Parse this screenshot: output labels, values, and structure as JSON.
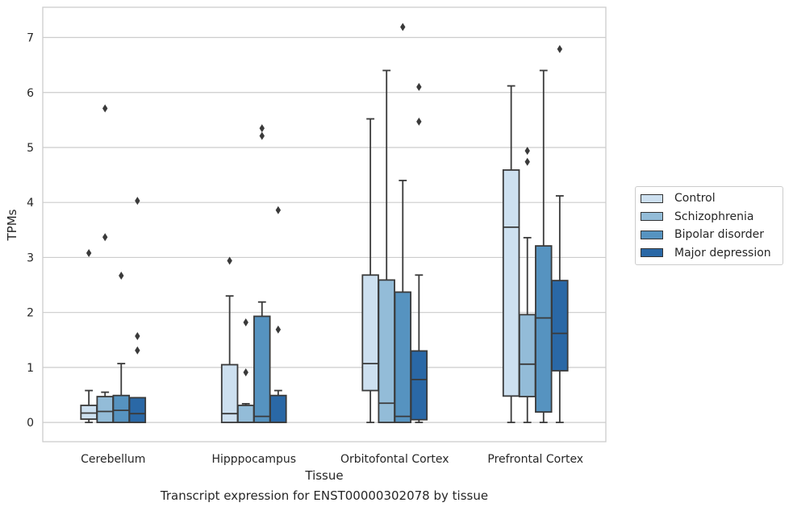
{
  "chart_data": {
    "type": "boxplot",
    "xlabel": "Tissue",
    "ylabel": "TPMs",
    "caption": "Transcript expression for ENST00000302078 by tissue",
    "ylim": [
      -0.35,
      7.55
    ],
    "yticks": [
      0,
      1,
      2,
      3,
      4,
      5,
      6,
      7
    ],
    "grid": "horizontal",
    "legend_position": "right",
    "categories": [
      "Cerebellum",
      "Hipppocampus",
      "Orbitofontal Cortex",
      "Prefrontal Cortex"
    ],
    "series": [
      {
        "name": "Control",
        "color": "#cde0f0",
        "boxes": [
          {
            "whislo": 0.0,
            "q1": 0.06,
            "median": 0.17,
            "q3": 0.31,
            "whishi": 0.58,
            "fliers": [
              3.08
            ]
          },
          {
            "whislo": 0.0,
            "q1": 0.0,
            "median": 0.16,
            "q3": 1.05,
            "whishi": 2.3,
            "fliers": [
              2.94
            ]
          },
          {
            "whislo": 0.0,
            "q1": 0.58,
            "median": 1.07,
            "q3": 2.68,
            "whishi": 5.52,
            "fliers": []
          },
          {
            "whislo": 0.0,
            "q1": 0.48,
            "median": 3.55,
            "q3": 4.59,
            "whishi": 6.12,
            "fliers": []
          }
        ]
      },
      {
        "name": "Schizophrenia",
        "color": "#93bcd8",
        "boxes": [
          {
            "whislo": 0.0,
            "q1": 0.0,
            "median": 0.2,
            "q3": 0.47,
            "whishi": 0.55,
            "fliers": [
              5.71,
              3.37
            ]
          },
          {
            "whislo": 0.0,
            "q1": 0.0,
            "median": 0.0,
            "q3": 0.31,
            "whishi": 0.34,
            "fliers": [
              1.82,
              0.91
            ]
          },
          {
            "whislo": 0.0,
            "q1": 0.0,
            "median": 0.35,
            "q3": 2.59,
            "whishi": 6.4,
            "fliers": []
          },
          {
            "whislo": 0.0,
            "q1": 0.47,
            "median": 1.06,
            "q3": 1.96,
            "whishi": 3.36,
            "fliers": [
              4.94,
              4.74
            ]
          }
        ]
      },
      {
        "name": "Bipolar disorder",
        "color": "#5693c0",
        "boxes": [
          {
            "whislo": 0.0,
            "q1": 0.0,
            "median": 0.22,
            "q3": 0.49,
            "whishi": 1.07,
            "fliers": [
              2.67
            ]
          },
          {
            "whislo": 0.0,
            "q1": 0.0,
            "median": 0.11,
            "q3": 1.93,
            "whishi": 2.19,
            "fliers": [
              5.35,
              5.21
            ]
          },
          {
            "whislo": 0.0,
            "q1": 0.0,
            "median": 0.11,
            "q3": 2.37,
            "whishi": 4.4,
            "fliers": [
              7.19
            ]
          },
          {
            "whislo": 0.0,
            "q1": 0.19,
            "median": 1.9,
            "q3": 3.21,
            "whishi": 6.4,
            "fliers": []
          }
        ]
      },
      {
        "name": "Major depression",
        "color": "#2a68a6",
        "boxes": [
          {
            "whislo": 0.0,
            "q1": 0.0,
            "median": 0.16,
            "q3": 0.45,
            "whishi": 0.45,
            "fliers": [
              4.03,
              1.57,
              1.31
            ]
          },
          {
            "whislo": 0.0,
            "q1": 0.0,
            "median": 0.0,
            "q3": 0.49,
            "whishi": 0.58,
            "fliers": [
              3.86,
              1.69
            ]
          },
          {
            "whislo": 0.0,
            "q1": 0.05,
            "median": 0.78,
            "q3": 1.3,
            "whishi": 2.68,
            "fliers": [
              6.1,
              5.47
            ]
          },
          {
            "whislo": 0.0,
            "q1": 0.94,
            "median": 1.62,
            "q3": 2.58,
            "whishi": 4.12,
            "fliers": [
              6.79
            ]
          }
        ]
      }
    ]
  }
}
